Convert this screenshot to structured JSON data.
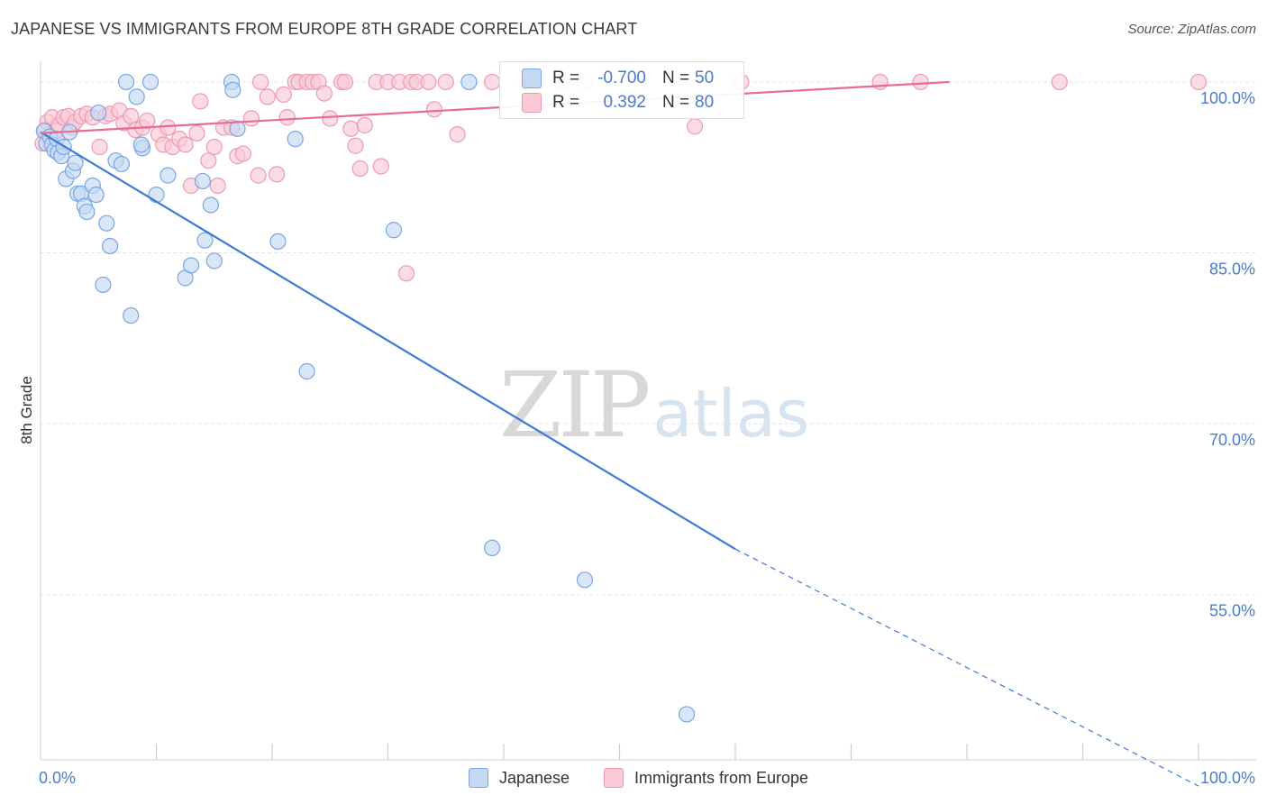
{
  "title": "JAPANESE VS IMMIGRANTS FROM EUROPE 8TH GRADE CORRELATION CHART",
  "source": "Source: ZipAtlas.com",
  "colors": {
    "japanese_fill": "#c5d8f4",
    "japanese_stroke": "#7aa6e0",
    "japanese_line": "#3a7bd5",
    "europe_fill": "#f9c9d6",
    "europe_stroke": "#ec9ab2",
    "europe_line": "#e86a95",
    "axis_value": "#4a7cc9",
    "grid": "#e2e2e2"
  },
  "legend_stats": [
    {
      "r_label": "R =",
      "r_value": "-0.700",
      "n_label": "N =",
      "n_value": "50"
    },
    {
      "r_label": "R =",
      "r_value": "0.392",
      "n_label": "N =",
      "n_value": "80"
    }
  ],
  "bottom_legend": [
    "Japanese",
    "Immigrants from Europe"
  ],
  "watermark": {
    "zip": "ZIP",
    "atlas": "atlas"
  },
  "chart_data": {
    "type": "scatter",
    "title": "JAPANESE VS IMMIGRANTS FROM EUROPE 8TH GRADE CORRELATION CHART",
    "xlabel": "",
    "ylabel": "8th Grade",
    "xlim": [
      0,
      100
    ],
    "ylim": [
      40.5,
      101.5
    ],
    "x_tick_labels": [
      "0.0%",
      "100.0%"
    ],
    "y_ticks": [
      55,
      70,
      85,
      100
    ],
    "y_tick_labels": [
      "55.0%",
      "70.0%",
      "85.0%",
      "100.0%"
    ],
    "grid": true,
    "series": [
      {
        "name": "Japanese",
        "r": -0.7,
        "n": 50,
        "trend": {
          "x": [
            0.0,
            60.0
          ],
          "y": [
            95.6,
            59.0
          ],
          "dashed_to": [
            100.0,
            38.2
          ]
        },
        "points": [
          [
            0.3,
            95.7
          ],
          [
            0.5,
            94.6
          ],
          [
            0.8,
            95.2
          ],
          [
            1.0,
            94.5
          ],
          [
            1.2,
            94.0
          ],
          [
            1.4,
            95.0
          ],
          [
            1.5,
            93.8
          ],
          [
            1.8,
            93.5
          ],
          [
            2.0,
            94.3
          ],
          [
            2.2,
            91.5
          ],
          [
            2.5,
            95.6
          ],
          [
            2.8,
            92.2
          ],
          [
            3.0,
            92.9
          ],
          [
            3.2,
            90.2
          ],
          [
            3.5,
            90.2
          ],
          [
            3.8,
            89.1
          ],
          [
            4.0,
            88.6
          ],
          [
            4.5,
            90.9
          ],
          [
            4.8,
            90.1
          ],
          [
            5.0,
            97.3
          ],
          [
            5.7,
            87.6
          ],
          [
            6.0,
            85.6
          ],
          [
            6.5,
            93.1
          ],
          [
            7.0,
            92.8
          ],
          [
            5.4,
            82.2
          ],
          [
            7.4,
            100.0
          ],
          [
            7.8,
            79.5
          ],
          [
            8.3,
            98.7
          ],
          [
            8.8,
            94.2
          ],
          [
            9.5,
            100.0
          ],
          [
            10.0,
            90.1
          ],
          [
            11.0,
            91.8
          ],
          [
            12.5,
            82.8
          ],
          [
            13.0,
            83.9
          ],
          [
            14.0,
            91.3
          ],
          [
            14.2,
            86.1
          ],
          [
            14.7,
            89.2
          ],
          [
            15.0,
            84.3
          ],
          [
            16.5,
            100.0
          ],
          [
            16.6,
            99.3
          ],
          [
            17.0,
            95.9
          ],
          [
            20.5,
            86.0
          ],
          [
            22.0,
            95.0
          ],
          [
            23.0,
            74.6
          ],
          [
            30.5,
            87.0
          ],
          [
            37.0,
            100.0
          ],
          [
            39.0,
            59.1
          ],
          [
            47.0,
            56.3
          ],
          [
            55.8,
            44.5
          ],
          [
            8.7,
            94.5
          ]
        ]
      },
      {
        "name": "Immigrants from Europe",
        "r": 0.392,
        "n": 80,
        "trend": {
          "x": [
            0.0,
            78.5
          ],
          "y": [
            95.5,
            100.0
          ]
        },
        "points": [
          [
            0.2,
            94.6
          ],
          [
            0.4,
            95.8
          ],
          [
            0.6,
            96.5
          ],
          [
            0.8,
            95.2
          ],
          [
            1.0,
            96.9
          ],
          [
            1.3,
            95.7
          ],
          [
            1.6,
            96.2
          ],
          [
            2.0,
            96.9
          ],
          [
            2.4,
            97.0
          ],
          [
            2.7,
            96.0
          ],
          [
            3.0,
            96.5
          ],
          [
            3.5,
            97.0
          ],
          [
            4.0,
            97.2
          ],
          [
            4.5,
            96.9
          ],
          [
            5.1,
            94.3
          ],
          [
            5.6,
            97.0
          ],
          [
            6.0,
            97.2
          ],
          [
            6.8,
            97.5
          ],
          [
            7.2,
            96.4
          ],
          [
            7.8,
            97.0
          ],
          [
            8.2,
            95.8
          ],
          [
            8.8,
            96.0
          ],
          [
            9.2,
            96.6
          ],
          [
            10.2,
            95.4
          ],
          [
            10.6,
            94.5
          ],
          [
            11.0,
            96.0
          ],
          [
            11.4,
            94.3
          ],
          [
            12.0,
            95.0
          ],
          [
            12.5,
            94.5
          ],
          [
            13.0,
            90.9
          ],
          [
            13.5,
            95.5
          ],
          [
            13.8,
            98.3
          ],
          [
            14.5,
            93.1
          ],
          [
            15.0,
            94.3
          ],
          [
            15.3,
            90.9
          ],
          [
            15.8,
            96.0
          ],
          [
            16.5,
            96.0
          ],
          [
            17.0,
            93.5
          ],
          [
            17.5,
            93.7
          ],
          [
            18.2,
            96.8
          ],
          [
            18.8,
            91.8
          ],
          [
            19.0,
            100.0
          ],
          [
            19.6,
            98.7
          ],
          [
            20.4,
            91.9
          ],
          [
            21.0,
            98.9
          ],
          [
            21.3,
            96.9
          ],
          [
            22.0,
            100.0
          ],
          [
            22.3,
            100.0
          ],
          [
            23.0,
            100.0
          ],
          [
            23.5,
            100.0
          ],
          [
            24.0,
            100.0
          ],
          [
            24.5,
            99.0
          ],
          [
            25.0,
            96.8
          ],
          [
            26.0,
            100.0
          ],
          [
            26.3,
            100.0
          ],
          [
            26.8,
            95.9
          ],
          [
            27.2,
            94.4
          ],
          [
            27.6,
            92.4
          ],
          [
            28.0,
            96.2
          ],
          [
            29.0,
            100.0
          ],
          [
            29.4,
            92.6
          ],
          [
            30.0,
            100.0
          ],
          [
            31.0,
            100.0
          ],
          [
            31.6,
            83.2
          ],
          [
            32.0,
            100.0
          ],
          [
            32.5,
            100.0
          ],
          [
            33.5,
            100.0
          ],
          [
            34.0,
            97.6
          ],
          [
            35.0,
            100.0
          ],
          [
            36.0,
            95.4
          ],
          [
            39.0,
            100.0
          ],
          [
            42.0,
            100.0
          ],
          [
            45.0,
            100.0
          ],
          [
            47.0,
            100.0
          ],
          [
            56.5,
            96.1
          ],
          [
            60.5,
            100.0
          ],
          [
            72.5,
            100.0
          ],
          [
            76.0,
            100.0
          ],
          [
            88.0,
            100.0
          ],
          [
            100.0,
            100.0
          ]
        ]
      }
    ]
  }
}
